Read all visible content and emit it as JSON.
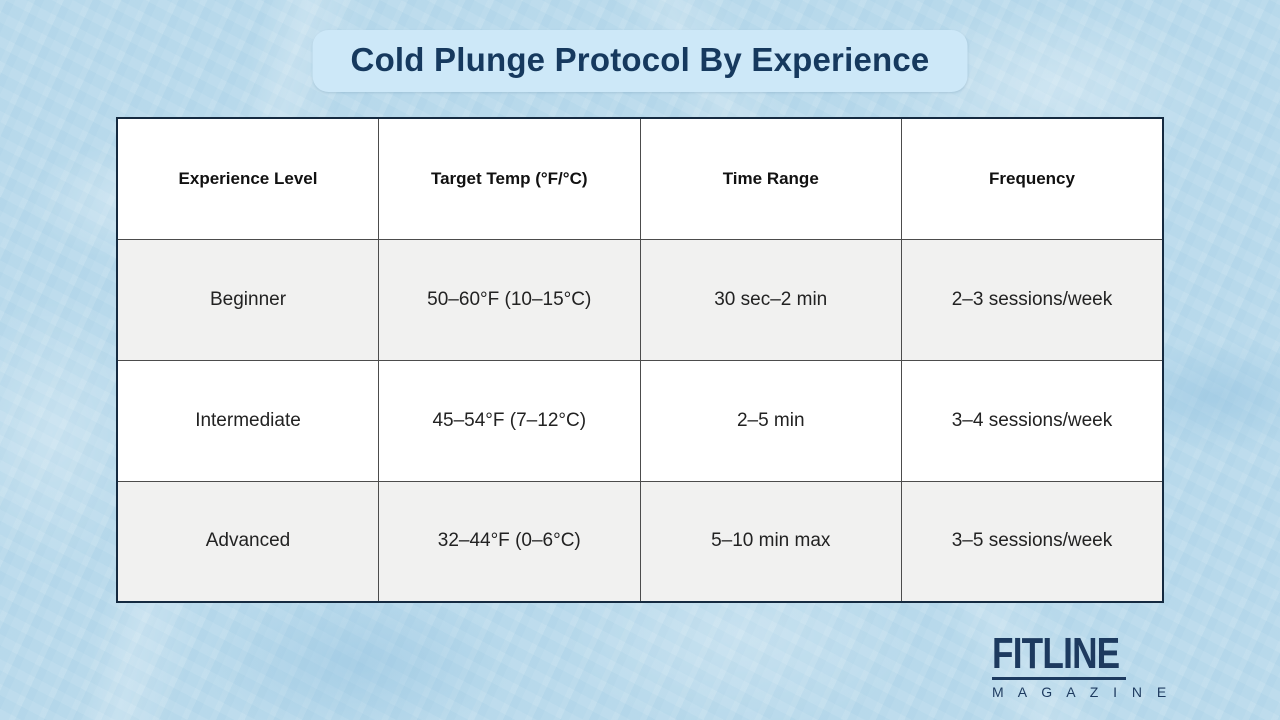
{
  "title": "Cold Plunge Protocol By Experience",
  "colors": {
    "page_background": "#b6d8ea",
    "title_badge_bg": "#cde8f8",
    "title_text": "#16395e",
    "table_outer_border": "#152a40",
    "cell_border": "#4c4c4c",
    "row_alt_bg": "#f1f1f0",
    "logo_navy": "#1d3a5f"
  },
  "table": {
    "headers": [
      "Experience Level",
      "Target Temp (°F/°C)",
      "Time Range",
      "Frequency"
    ],
    "rows": [
      {
        "cells": [
          "Beginner",
          "50–60°F (10–15°C)",
          "30 sec–2 min",
          "2–3 sessions/week"
        ]
      },
      {
        "cells": [
          "Intermediate",
          "45–54°F (7–12°C)",
          "2–5 min",
          "3–4 sessions/week"
        ]
      },
      {
        "cells": [
          "Advanced",
          "32–44°F (0–6°C)",
          "5–10 min max",
          "3–5 sessions/week"
        ]
      }
    ]
  },
  "logo": {
    "name": "FITLINE",
    "subtitle": "M A G A Z I N E"
  },
  "chart_data": {
    "type": "table",
    "title": "Cold Plunge Protocol By Experience",
    "columns": [
      "Experience Level",
      "Target Temp (°F/°C)",
      "Time Range",
      "Frequency"
    ],
    "rows": [
      [
        "Beginner",
        "50–60°F (10–15°C)",
        "30 sec–2 min",
        "2–3 sessions/week"
      ],
      [
        "Intermediate",
        "45–54°F (7–12°C)",
        "2–5 min",
        "3–4 sessions/week"
      ],
      [
        "Advanced",
        "32–44°F (0–6°C)",
        "5–10 min max",
        "3–5 sessions/week"
      ]
    ],
    "layout_hints": {
      "header_row_bg": "white",
      "alternating_row_shading": [
        "#f1f1f0",
        "#ffffff",
        "#f1f1f0"
      ],
      "grid_on": true
    }
  }
}
